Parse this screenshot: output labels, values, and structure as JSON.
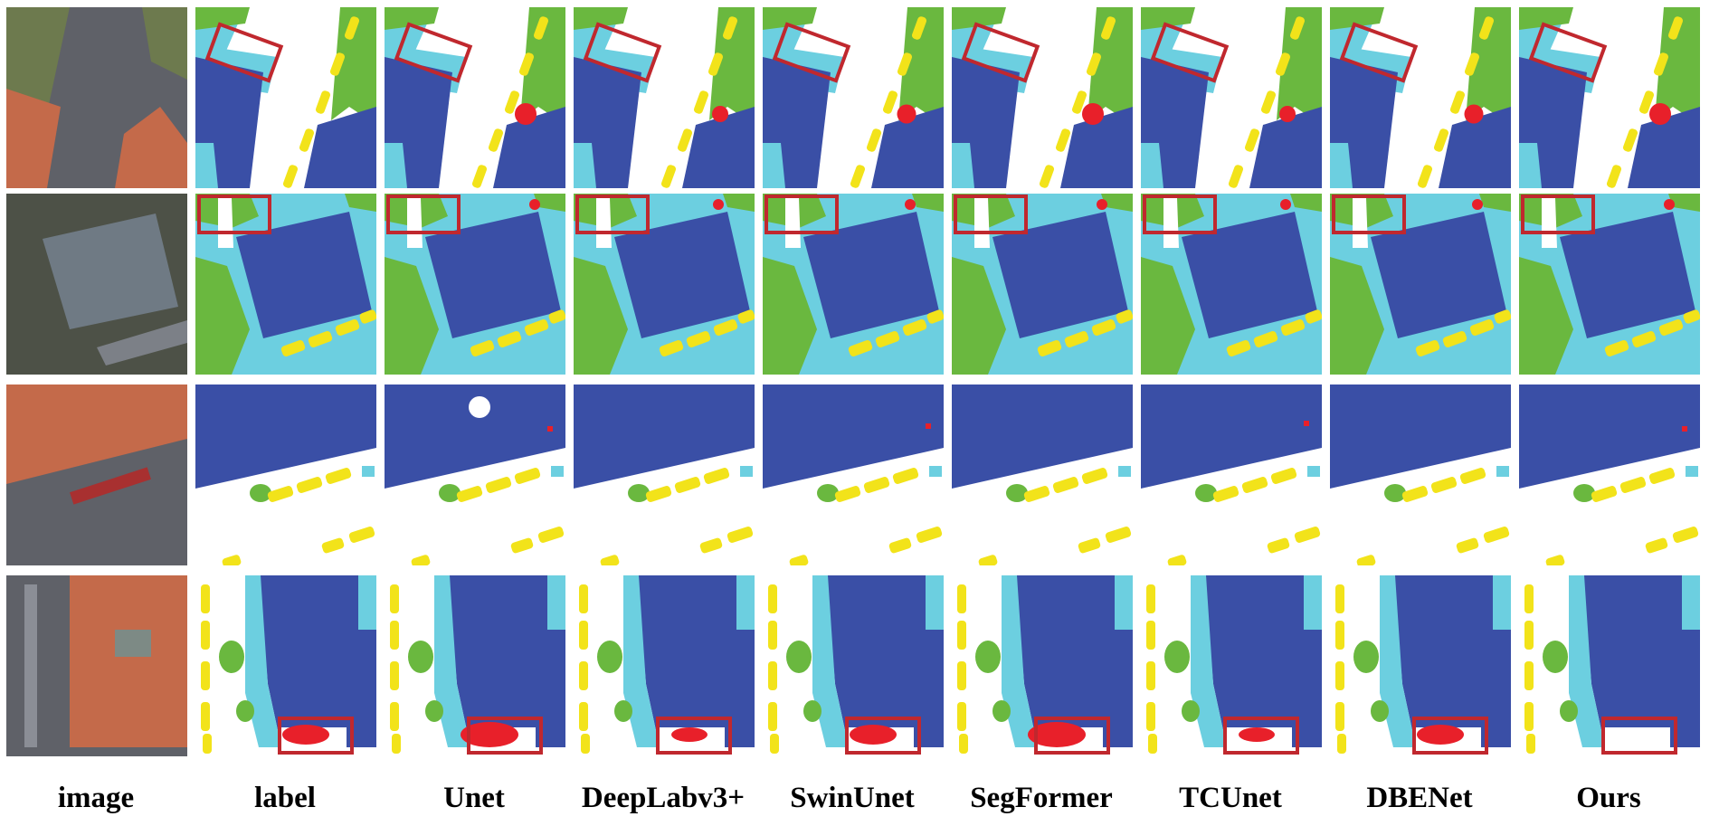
{
  "figure": {
    "column_labels": [
      "image",
      "label",
      "Unet",
      "DeepLabv3+",
      "SwinUnet",
      "SegFormer",
      "TCUnet",
      "DBENet",
      "Ours"
    ],
    "rows": 4,
    "colors": {
      "background": "#ffffff",
      "building": "#3a4fa6",
      "low_vegetation": "#6ccfe0",
      "tree": "#6ab83f",
      "car": "#f2e31a",
      "clutter": "#e8202a",
      "highlight_box": "#c0282e",
      "aerial_road": "#5f6168",
      "aerial_roof": "#c46a4a",
      "aerial_grass": "#6d7a4e",
      "aerial_gray_roof": "#6f7a84"
    }
  }
}
